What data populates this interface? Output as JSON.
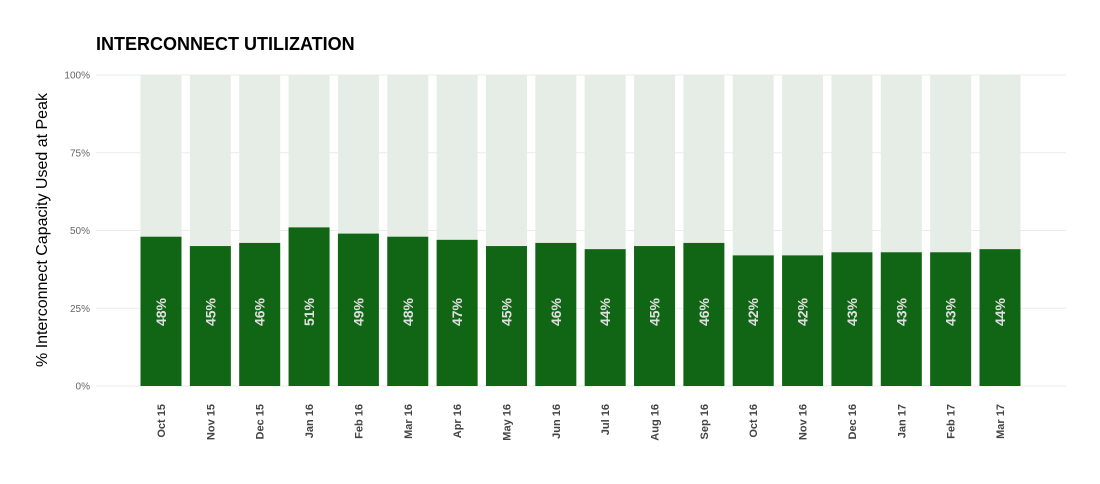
{
  "chart_data": {
    "type": "bar",
    "title": "INTERCONNECT UTILIZATION",
    "xlabel": "",
    "ylabel": "% Interconnect Capacity Used at Peak",
    "ylim": [
      0,
      100
    ],
    "yticks": [
      "0%",
      "25%",
      "50%",
      "75%",
      "100%"
    ],
    "grid": true,
    "categories": [
      "Oct 15",
      "Nov 15",
      "Dec 15",
      "Jan 16",
      "Feb 16",
      "Mar 16",
      "Apr 16",
      "May 16",
      "Jun 16",
      "Jul 16",
      "Aug 16",
      "Sep 16",
      "Oct 16",
      "Nov 16",
      "Dec 16",
      "Jan 17",
      "Feb 17",
      "Mar 17"
    ],
    "values": [
      48,
      45,
      46,
      51,
      49,
      48,
      47,
      45,
      46,
      44,
      45,
      46,
      42,
      42,
      43,
      43,
      43,
      44
    ],
    "labels": [
      "48%",
      "45%",
      "46%",
      "51%",
      "49%",
      "48%",
      "47%",
      "45%",
      "46%",
      "44%",
      "45%",
      "46%",
      "42%",
      "42%",
      "43%",
      "43%",
      "43%",
      "44%"
    ],
    "colors": {
      "bar": "#116615",
      "background_bar": "#e6ede6",
      "value_label": "#e0e0e0"
    }
  }
}
